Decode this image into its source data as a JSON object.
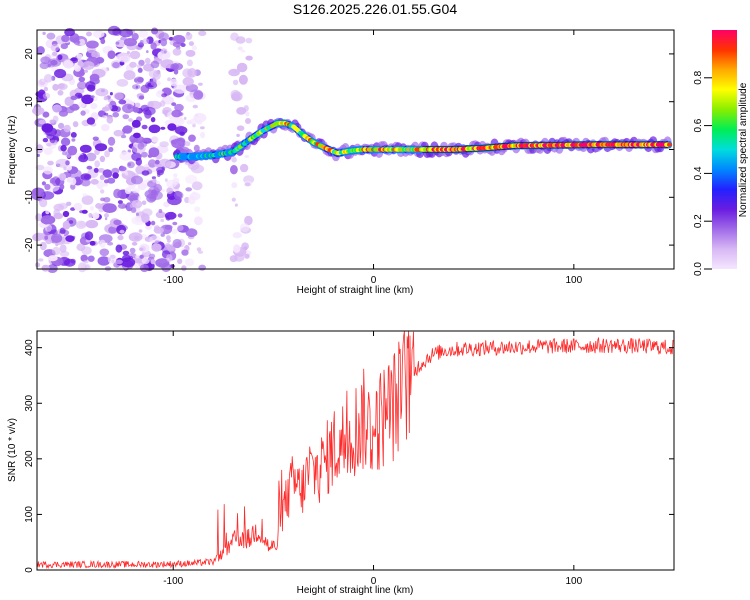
{
  "chart_data": [
    {
      "type": "heatmap",
      "title": "S126.2025.226.01.55.G04",
      "xlabel": "Height of straight line (km)",
      "ylabel": "Frequency (Hz)",
      "xlim": [
        -168,
        150
      ],
      "ylim": [
        -25,
        25
      ],
      "xticks": [
        -100,
        0,
        100
      ],
      "xtick_labels": [
        "-100",
        "0",
        "100"
      ],
      "yticks": [
        -20,
        -10,
        0,
        10,
        20
      ],
      "ytick_labels": [
        "-20",
        "-10",
        "0",
        "10",
        "20"
      ],
      "colorbar": {
        "label": "Normalized spectral amplitude",
        "range": [
          0,
          1
        ],
        "ticks": [
          0.0,
          0.2,
          0.4,
          0.6,
          0.8
        ],
        "tick_labels": [
          "0.0",
          "0.2",
          "0.4",
          "0.6",
          "0.8"
        ],
        "colors": [
          "#f5e6ff",
          "#d8b8f4",
          "#a06ae8",
          "#6a1de0",
          "#2222ff",
          "#0088ff",
          "#00dddd",
          "#00ee55",
          "#88ee00",
          "#ffff00",
          "#ffaa00",
          "#ff3300",
          "#ff0066"
        ]
      },
      "ridge": [
        {
          "x": -98,
          "f": -1.5,
          "a": 0.35
        },
        {
          "x": -90,
          "f": -1.5,
          "a": 0.4
        },
        {
          "x": -80,
          "f": -1.2,
          "a": 0.45
        },
        {
          "x": -70,
          "f": -0.5,
          "a": 0.5
        },
        {
          "x": -62,
          "f": 2.0,
          "a": 0.55
        },
        {
          "x": -55,
          "f": 4.0,
          "a": 0.6
        },
        {
          "x": -48,
          "f": 5.5,
          "a": 0.65
        },
        {
          "x": -44,
          "f": 5.5,
          "a": 0.75
        },
        {
          "x": -40,
          "f": 4.8,
          "a": 0.7
        },
        {
          "x": -35,
          "f": 3.0,
          "a": 0.7
        },
        {
          "x": -30,
          "f": 1.5,
          "a": 0.75
        },
        {
          "x": -24,
          "f": 0.3,
          "a": 0.8
        },
        {
          "x": -18,
          "f": -0.8,
          "a": 0.7
        },
        {
          "x": -12,
          "f": -0.3,
          "a": 0.72
        },
        {
          "x": -5,
          "f": 0.0,
          "a": 0.8
        },
        {
          "x": 5,
          "f": 0.0,
          "a": 0.8
        },
        {
          "x": 15,
          "f": 0.0,
          "a": 0.65
        },
        {
          "x": 25,
          "f": 0.0,
          "a": 0.75
        },
        {
          "x": 40,
          "f": 0.0,
          "a": 0.85
        },
        {
          "x": 55,
          "f": 0.3,
          "a": 0.85
        },
        {
          "x": 70,
          "f": 0.8,
          "a": 0.9
        },
        {
          "x": 90,
          "f": 0.9,
          "a": 0.9
        },
        {
          "x": 110,
          "f": 1.0,
          "a": 0.92
        },
        {
          "x": 130,
          "f": 1.0,
          "a": 0.92
        },
        {
          "x": 148,
          "f": 1.0,
          "a": 0.9
        }
      ]
    },
    {
      "type": "line",
      "xlabel": "Height of straight line (km)",
      "ylabel": "SNR (10 * v/v)",
      "xlim": [
        -168,
        150
      ],
      "ylim": [
        0,
        430
      ],
      "xticks": [
        -100,
        0,
        100
      ],
      "xtick_labels": [
        "-100",
        "0",
        "100"
      ],
      "yticks": [
        0,
        100,
        200,
        300,
        400
      ],
      "ytick_labels": [
        "0",
        "100",
        "200",
        "300",
        "400"
      ],
      "color": "#ff2a2a",
      "series": [
        {
          "name": "SNR",
          "x": [
            -168,
            -140,
            -110,
            -90,
            -80,
            -72,
            -68,
            -62,
            -58,
            -52,
            -48,
            -45,
            -40,
            -36,
            -32,
            -28,
            -25,
            -20,
            -15,
            -10,
            -5,
            0,
            5,
            10,
            14,
            18,
            22,
            28,
            35,
            45,
            60,
            80,
            100,
            120,
            140,
            150
          ],
          "y": [
            10,
            10,
            10,
            12,
            15,
            40,
            60,
            55,
            75,
            40,
            45,
            110,
            160,
            140,
            180,
            175,
            190,
            220,
            230,
            250,
            270,
            250,
            280,
            295,
            320,
            345,
            365,
            385,
            395,
            398,
            400,
            402,
            403,
            404,
            402,
            400
          ]
        }
      ]
    }
  ]
}
